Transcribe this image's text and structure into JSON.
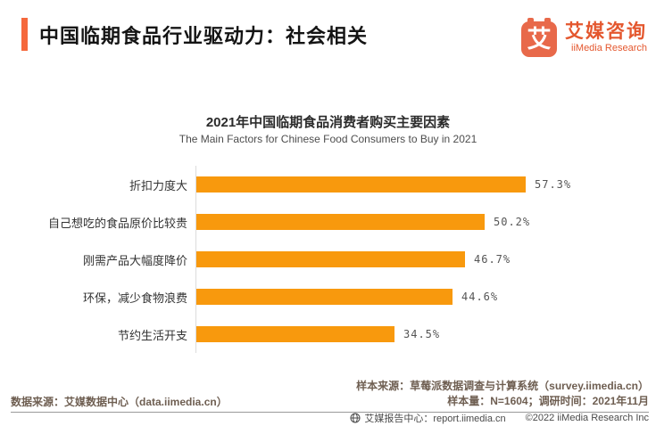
{
  "header": {
    "title": "中国临期食品行业驱动力：社会相关"
  },
  "logo": {
    "glyph": "艾",
    "name_cn": "艾媒咨询",
    "name_en": "iiMedia Research"
  },
  "chart_data": {
    "type": "bar",
    "orientation": "horizontal",
    "title": "2021年中国临期食品消费者购买主要因素",
    "subtitle": "The Main Factors for Chinese Food Consumers to Buy in 2021",
    "categories": [
      "折扣力度大",
      "自己想吃的食品原价比较贵",
      "刚需产品大幅度降价",
      "环保，减少食物浪费",
      "节约生活开支"
    ],
    "values": [
      57.3,
      50.2,
      46.7,
      44.6,
      34.5
    ],
    "value_labels": [
      "57.3%",
      "50.2%",
      "46.7%",
      "44.6%",
      "34.5%"
    ],
    "value_suffix": "%",
    "xlim": [
      0,
      62
    ],
    "grid": false,
    "legend": false,
    "bar_color": "#F8990D"
  },
  "footer": {
    "sample_source": "样本来源：草莓派数据调查与计算系统（survey.iimedia.cn）",
    "sample_size": "样本量：N=1604；调研时间：2021年11月",
    "data_source": "数据来源：艾媒数据中心（data.iimedia.cn）",
    "report_center": "艾媒报告中心：report.iimedia.cn",
    "copyright": "©2022  iiMedia Research  Inc"
  },
  "colors": {
    "accent": "#F5683C",
    "bar": "#F8990D",
    "logo": "#E8694A"
  }
}
